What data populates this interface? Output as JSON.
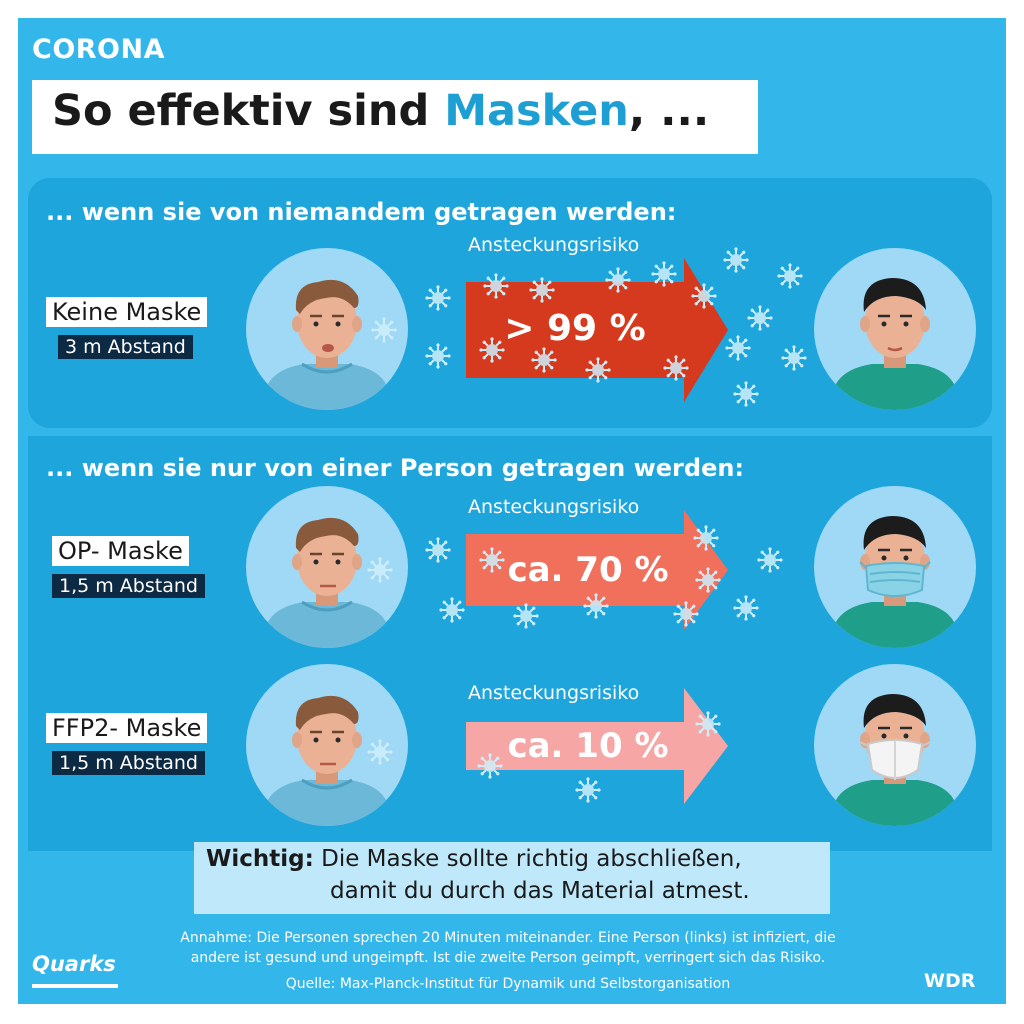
{
  "header": {
    "topic": "CORONA",
    "title_part1": "So effektiv sind ",
    "title_highlight": "Masken",
    "title_part2": ", ..."
  },
  "section1": {
    "heading": "... wenn sie von niemandem getragen werden:",
    "rows": [
      {
        "mask": "Keine Maske",
        "distance": "3 m Abstand",
        "risk_label": "Ansteckungsrisiko",
        "risk_value": "> 99 %",
        "risk_percent": 99,
        "arrow_color": "#d63a1e"
      }
    ]
  },
  "section2": {
    "heading": "... wenn sie nur von einer Person getragen werden:",
    "rows": [
      {
        "mask": "OP- Maske",
        "distance": "1,5 m Abstand",
        "risk_label": "Ansteckungsrisiko",
        "risk_value": "ca. 70 %",
        "risk_percent": 70,
        "arrow_color": "#f0705c"
      },
      {
        "mask": "FFP2- Maske",
        "distance": "1,5 m Abstand",
        "risk_label": "Ansteckungsrisiko",
        "risk_value": "ca. 10 %",
        "risk_percent": 10,
        "arrow_color": "#f7a6a6"
      }
    ]
  },
  "important": {
    "prefix": "Wichtig:",
    "line1": " Die Maske sollte richtig abschließen,",
    "line2": "damit du durch das Material atmest."
  },
  "footer": {
    "assumption_line1": "Annahme: Die Personen sprechen 20 Minuten miteinander. Eine Person (links) ist infiziert, die",
    "assumption_line2": "andere ist gesund und ungeimpft. Ist die zweite Person geimpft, verringert sich das Risiko.",
    "source": "Quelle: Max-Planck-Institut für Dynamik und Selbstorganisation",
    "logo_left": "Quarks",
    "logo_right": "WDR"
  },
  "colors": {
    "background": "#33b6ea",
    "panel": "#1da5dc",
    "accent": "#1e9fd4",
    "dark_label": "#0d2a44",
    "virus": "#cfeefa"
  },
  "icons": [
    "infected-person-icon",
    "healthy-person-icon",
    "surgical-mask-icon",
    "ffp2-mask-icon",
    "virus-icon",
    "arrow-icon"
  ]
}
